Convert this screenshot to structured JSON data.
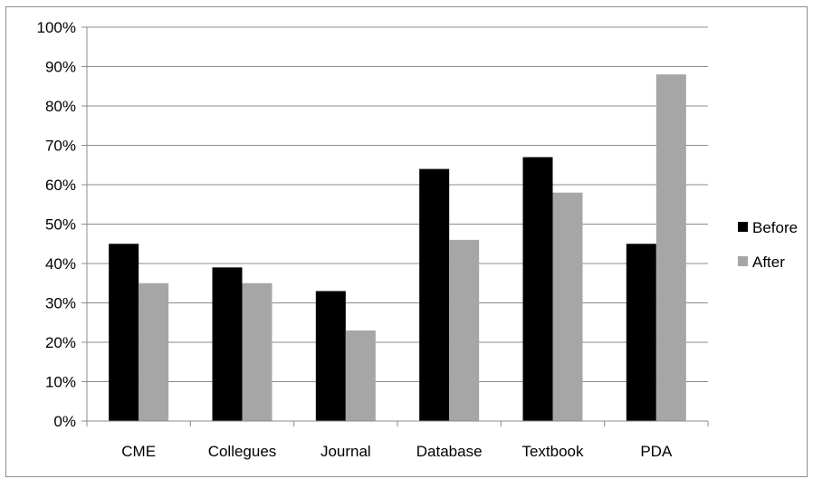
{
  "chart_data": {
    "type": "bar",
    "title": "",
    "xlabel": "",
    "ylabel": "",
    "categories": [
      "CME",
      "Collegues",
      "Journal",
      "Database",
      "Textbook",
      "PDA"
    ],
    "series": [
      {
        "name": "Before",
        "color": "#000000",
        "values": [
          45,
          39,
          33,
          64,
          67,
          45
        ]
      },
      {
        "name": "After",
        "color": "#a6a6a6",
        "values": [
          35,
          35,
          23,
          46,
          58,
          88
        ]
      }
    ],
    "ylim": [
      0,
      100
    ],
    "yticks": [
      "0%",
      "10%",
      "20%",
      "30%",
      "40%",
      "50%",
      "60%",
      "70%",
      "80%",
      "90%",
      "100%"
    ],
    "grid": true,
    "legend": "right"
  }
}
